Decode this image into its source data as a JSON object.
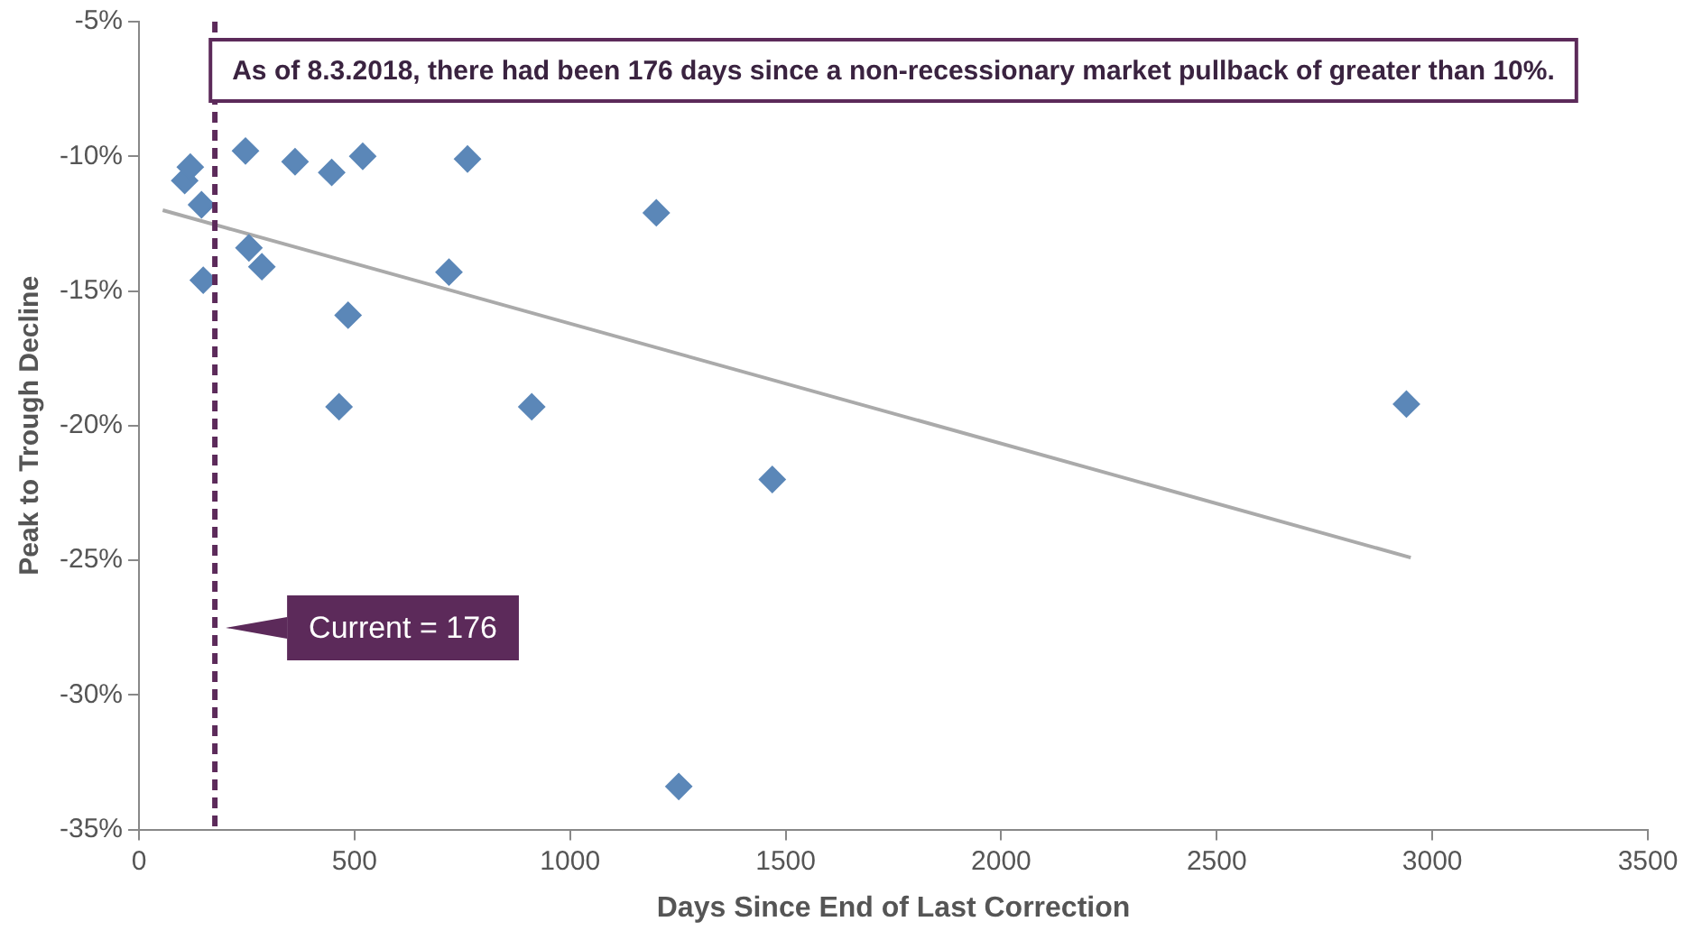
{
  "chart_data": {
    "type": "scatter",
    "xlabel": "Days Since End of Last Correction",
    "ylabel": "Peak to Trough Decline",
    "xlim": [
      0,
      3500
    ],
    "xticks": [
      0,
      500,
      1000,
      1500,
      2000,
      2500,
      3000,
      3500
    ],
    "ylim": [
      -35,
      -5
    ],
    "yticks": [
      {
        "value": -35,
        "label": "-35%"
      },
      {
        "value": -30,
        "label": "-30%"
      },
      {
        "value": -25,
        "label": "-25%"
      },
      {
        "value": -20,
        "label": "-20%"
      },
      {
        "value": -15,
        "label": "-15%"
      },
      {
        "value": -10,
        "label": "-10%"
      },
      {
        "value": -5,
        "label": "-5%"
      }
    ],
    "grid": false,
    "legend": false,
    "series": [
      {
        "marker": "diamond",
        "color": "#5b87b8",
        "x": [
          106,
          119,
          145,
          149,
          247,
          255,
          285,
          362,
          447,
          485,
          464,
          519,
          719,
          762,
          911,
          1200,
          1252,
          1469,
          2940
        ],
        "values": [
          -10.9,
          -10.4,
          -11.8,
          -14.6,
          -9.8,
          -13.4,
          -14.1,
          -10.2,
          -10.6,
          -15.9,
          -19.3,
          -10.0,
          -14.3,
          -10.1,
          -19.3,
          -12.1,
          -33.4,
          -22.0,
          -19.2
        ]
      },
      {
        "type": "line",
        "color": "#aaaaaa",
        "x": [
          55,
          2950
        ],
        "values": [
          -12.0,
          -24.9
        ]
      }
    ],
    "ref_lines": [
      {
        "axis": "x",
        "value": 176,
        "label": "Current = 176",
        "color": "#5c2a5a",
        "line_style": "dashed"
      }
    ],
    "annotations": [
      "As of 8.3.2018, there had been 176 days since a non-recessionary market pullback of greater than 10%."
    ]
  }
}
